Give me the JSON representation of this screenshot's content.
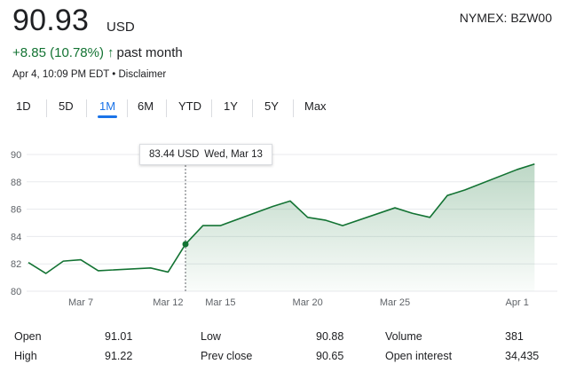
{
  "header": {
    "price": "90.93",
    "currency": "USD",
    "exchange": "NYMEX: BZW00",
    "change": "+8.85 (10.78%)",
    "change_arrow": "↑",
    "change_period": "past month",
    "timestamp": "Apr 4, 10:09 PM EDT • Disclaimer"
  },
  "range_tabs": [
    "1D",
    "5D",
    "1M",
    "6M",
    "YTD",
    "1Y",
    "5Y",
    "Max"
  ],
  "active_range": "1M",
  "tooltip": {
    "value": "83.44 USD",
    "date": "Wed, Mar 13"
  },
  "chart_data": {
    "type": "area",
    "x": [
      4,
      5,
      6,
      7,
      8,
      11,
      12,
      13,
      14,
      15,
      18,
      19,
      20,
      21,
      22,
      25,
      26,
      27,
      28,
      29,
      32,
      33
    ],
    "values": [
      82.1,
      81.3,
      82.2,
      82.3,
      81.5,
      81.7,
      81.4,
      83.44,
      84.8,
      84.8,
      86.2,
      86.6,
      85.4,
      85.2,
      84.8,
      86.1,
      85.7,
      85.4,
      87.0,
      87.4,
      88.9,
      89.3
    ],
    "xlabel": "",
    "ylabel": "",
    "ylim": [
      80,
      90
    ],
    "yticks": [
      80,
      82,
      84,
      86,
      88,
      90
    ],
    "xticks": [
      {
        "x": 7,
        "label": "Mar 7"
      },
      {
        "x": 12,
        "label": "Mar 12"
      },
      {
        "x": 15,
        "label": "Mar 15"
      },
      {
        "x": 20,
        "label": "Mar 20"
      },
      {
        "x": 25,
        "label": "Mar 25"
      },
      {
        "x": 32,
        "label": "Apr 1"
      }
    ],
    "highlight": {
      "x": 13,
      "value": 83.44
    },
    "grid": true,
    "line_color": "#137333"
  },
  "stats": [
    {
      "label": "Open",
      "value": "91.01"
    },
    {
      "label": "High",
      "value": "91.22"
    },
    {
      "label": "Low",
      "value": "90.88"
    },
    {
      "label": "Prev close",
      "value": "90.65"
    },
    {
      "label": "Volume",
      "value": "381"
    },
    {
      "label": "Open interest",
      "value": "34,435"
    }
  ]
}
